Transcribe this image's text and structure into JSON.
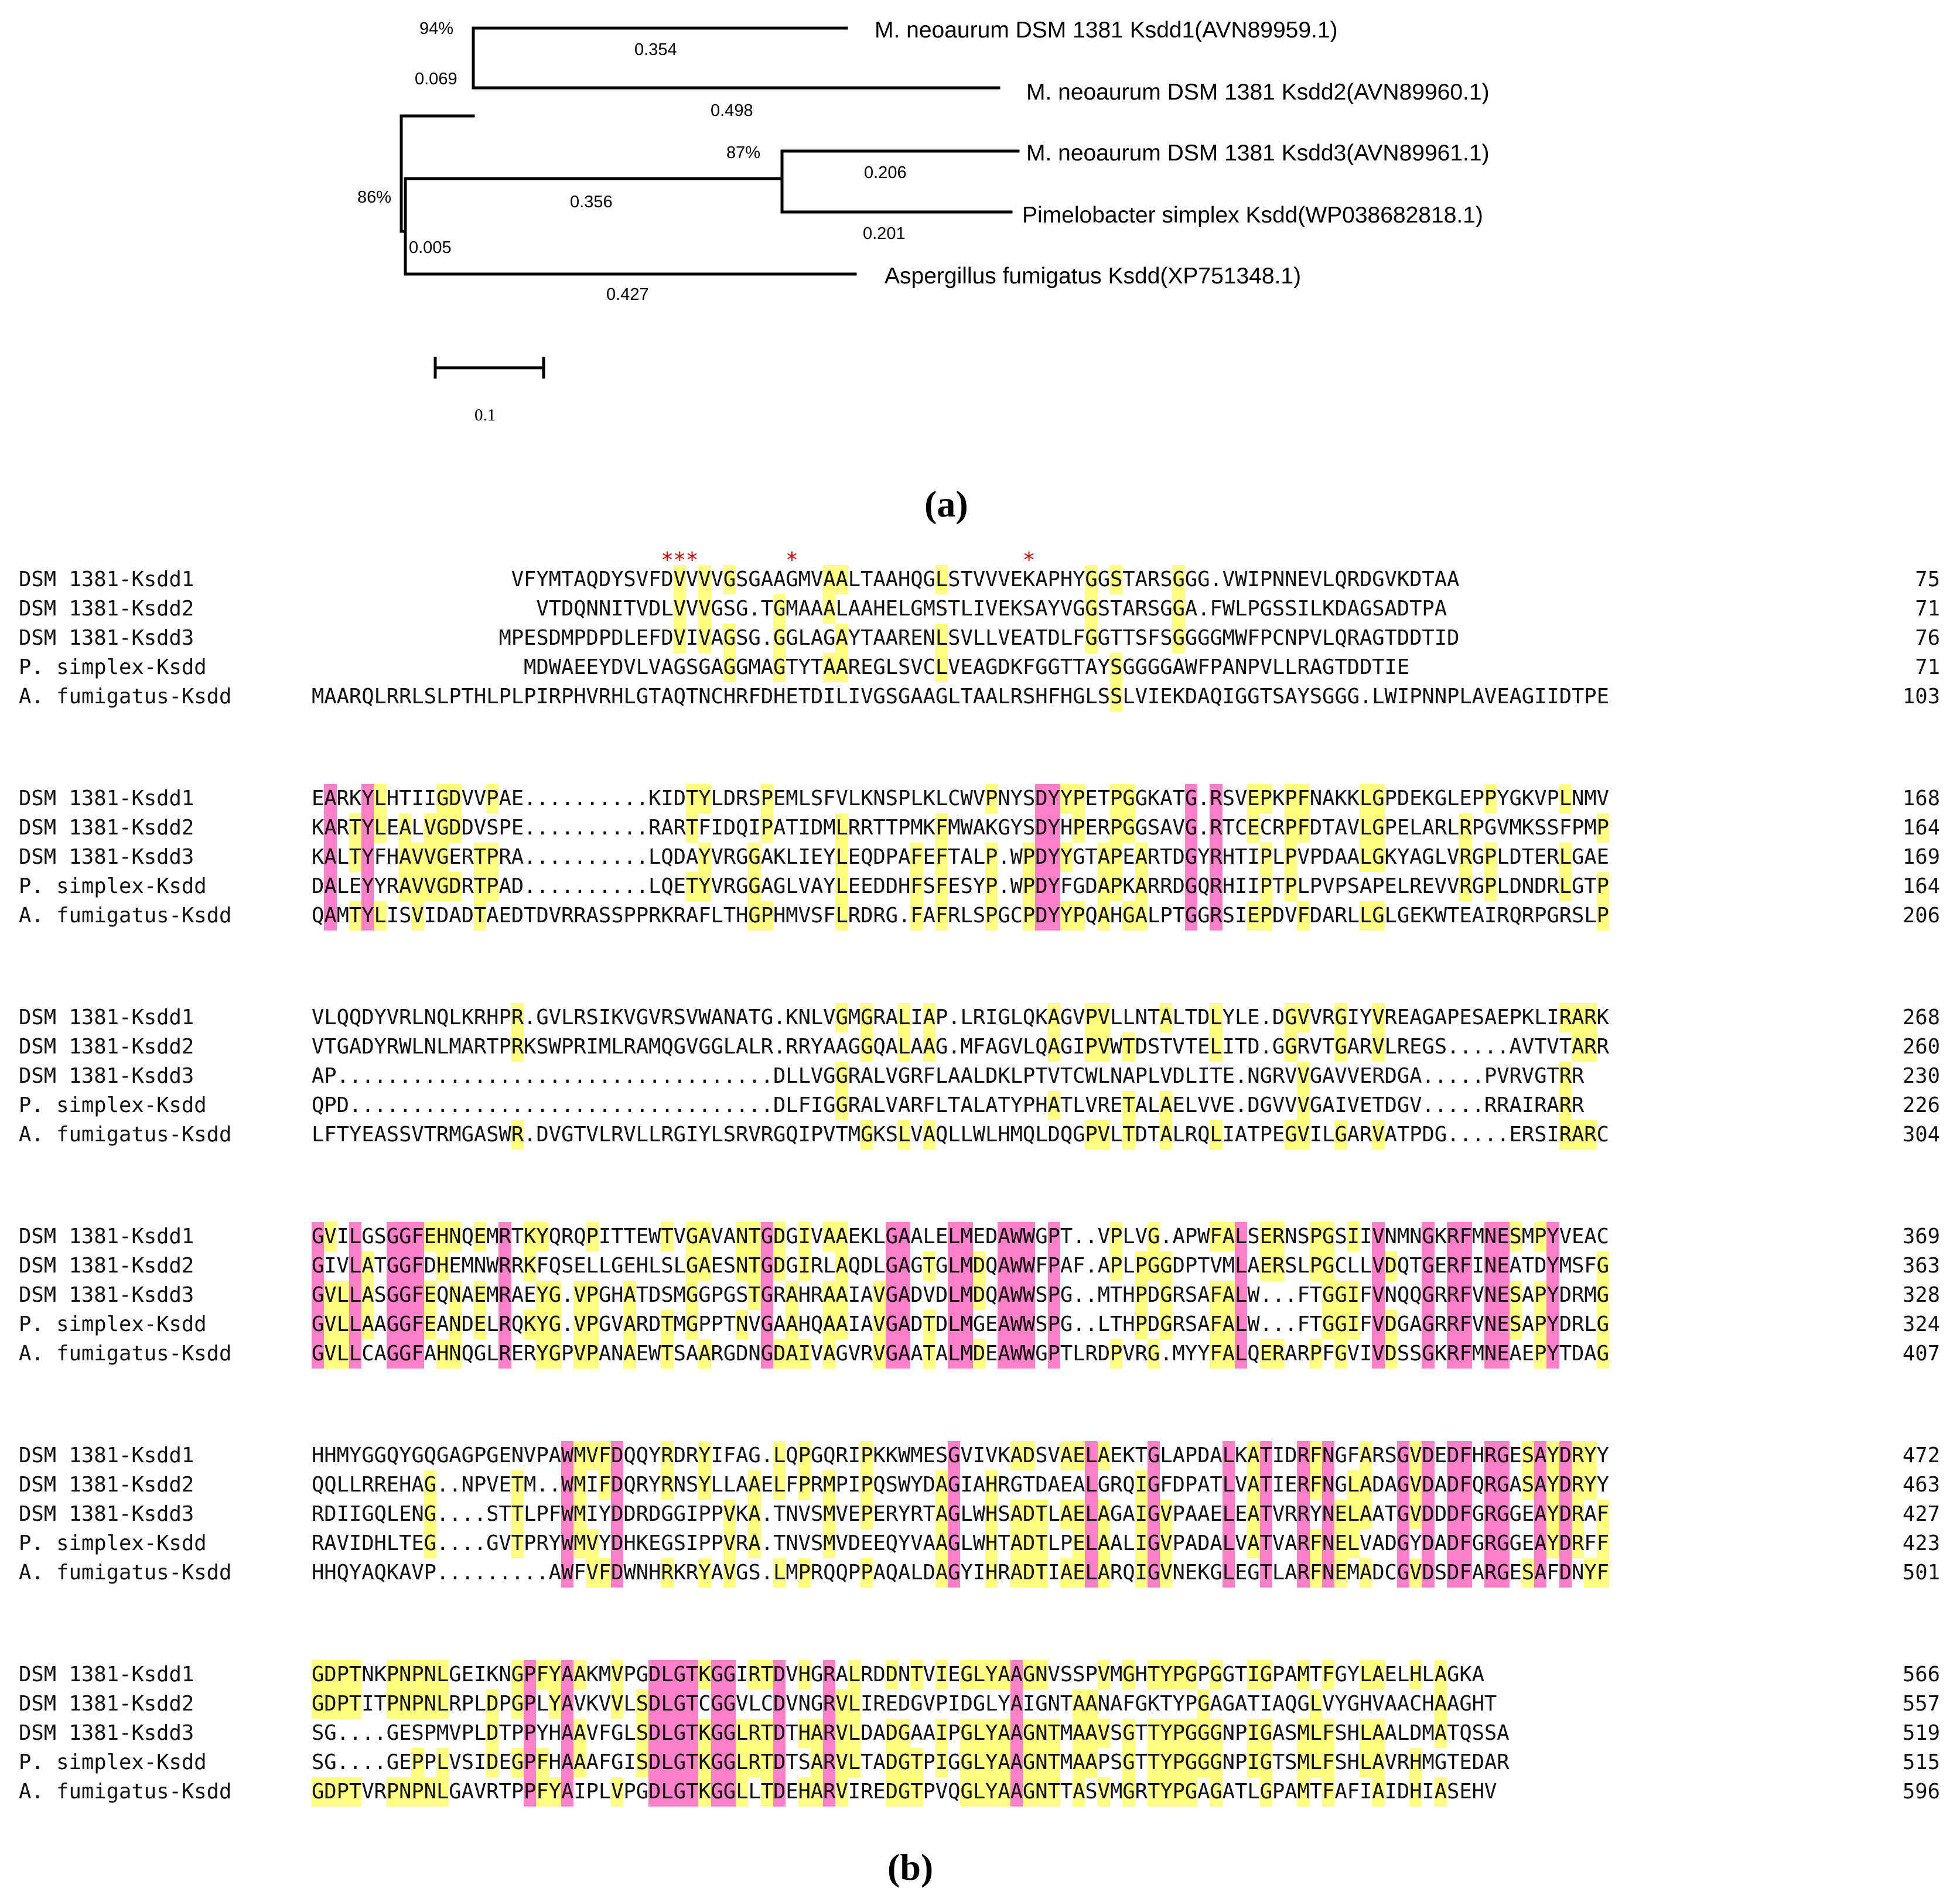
{
  "figure": {
    "panel_a_label": "(a)",
    "panel_b_label": "(b)"
  },
  "tree": {
    "taxa": [
      "M. neoaurum DSM 1381 Ksdd1(AVN89959.1)",
      "M. neoaurum DSM 1381 Ksdd2(AVN89960.1)",
      "M. neoaurum DSM 1381 Ksdd3(AVN89961.1)",
      "Pimelobacter simplex Ksdd(WP038682818.1)",
      "Aspergillus fumigatus Ksdd(XP751348.1)"
    ],
    "branch_lengths": {
      "ksdd1": "0.354",
      "ksdd2": "0.498",
      "ksdd3": "0.206",
      "pimelobacter": "0.201",
      "aspergillus": "0.427",
      "clade_ksdd1_ksdd2": "0.069",
      "clade_ksdd3_pimelobacter": "0.356",
      "clade_lower": "0.005"
    },
    "bootstrap": {
      "ksdd1_ksdd2": "94%",
      "ksdd3_pimelobacter": "87%",
      "lower_clade": "86%"
    },
    "scale_bar": {
      "label": "0.1",
      "value": 0.1
    }
  },
  "alignment": {
    "star_marks": [
      12,
      13,
      14,
      22,
      41
    ],
    "highlight_colors": {
      "pink": "#ff80c8",
      "yellow": "#ffff80",
      "star": "#e00000"
    },
    "blocks": [
      {
        "rows": [
          {
            "name": "DSM 1381-Ksdd1",
            "seq": "                VFYMTAQDYSVFDVVVVGSGAAGMVAALTAAHQGLSTVVVEKAPHYGGSTARSGGG.VWIPNNEVLQRDGVKDTAA",
            "end": "75"
          },
          {
            "name": "DSM 1381-Ksdd2",
            "seq": "                  VTDQNNITVDLVVVGSG.TGMAAALAAHELGMSTLIVEKSAYVGGSTARSGGA.FWLPGSSILKDAGSADTPA",
            "end": "71"
          },
          {
            "name": "DSM 1381-Ksdd3",
            "seq": "               MPESDMPDPDLEFDVIVAGSG.GGLAGAYTAARENLSVLLVEATDLFGGTTSFSGGGGMWFPCNPVLQRAGTDDTID",
            "end": "76"
          },
          {
            "name": "P. simplex-Ksdd",
            "seq": "                 MDWAEEYDVLVAGSGAGGMAGTYTAAREGLSVCLVEAGDKFGGTTAYSGGGGAWFPANPVLLRAGTDDTIE",
            "end": "71"
          },
          {
            "name": "A. fumigatus-Ksdd",
            "seq": "MAARQLRRLSLPTHLPLPIRPHVRHLGTAQTNCHRFDHETDILIVGSGAAGLTAALRSHFHGLSSLVIEKDAQIGGTSAYSGGG.LWIPNNPLAVEAGIIDTPE",
            "end": "103"
          }
        ]
      },
      {
        "rows": [
          {
            "name": "DSM 1381-Ksdd1",
            "seq": "EARKYLHTIIGDVVPAE..........KIDTYLDRSPEMLSFVLKNSPLKLCWVPNYSDYYPETPGGKATG.RSVEPKPFNAKKLGPDEKGLEPPYGKVPLNMV",
            "end": "168"
          },
          {
            "name": "DSM 1381-Ksdd2",
            "seq": "KARTYLEALVGDDVSPE..........RARTFIDQIPATIDMLRRTTPMKFMWAKGYSDYHPERPGGSAVG.RTCECRPFDTAVLGPELARLRPGVMKSSFPMP",
            "end": "164"
          },
          {
            "name": "DSM 1381-Ksdd3",
            "seq": "KALTYFHAVVGERTPRA..........LQDAYVRGGAKLIEYLEQDPAFEFTALP.WPDYYGTAPEARTDGYRHTIPLPVPDAALGKYAGLVRGPLDTERLGAE",
            "end": "169"
          },
          {
            "name": "P. simplex-Ksdd",
            "seq": "DALEYYRAVVGDRTPAD..........LQETYVRGGAGLVAYLEEDDHFSFESYP.WPDYFGDAPKARRDGQRHIIPTPLPVPSAPELREVVRGPLDNDRLGTP",
            "end": "164"
          },
          {
            "name": "A. fumigatus-Ksdd",
            "seq": "QAMTYLISVIDADTAEDTDVRRASSPPRKRAFLTHGPHMVSFLRDRG.FAFRLSPGCPDYYPQAHGALPTGGRSIEPDVFDARLLGLGEKWTEAIRQRPGRSLP",
            "end": "206"
          }
        ]
      },
      {
        "rows": [
          {
            "name": "DSM 1381-Ksdd1",
            "seq": "VLQQDYVRLNQLKRHPR.GVLRSIKVGVRSVWANATG.KNLVGMGRALIAP.LRIGLQKAGVPVLLNTALTDLYLE.DGVVRGIYVREAGAPESAEPKLIRARK",
            "end": "268"
          },
          {
            "name": "DSM 1381-Ksdd2",
            "seq": "VTGADYRWLNLMARTPRKSWPRIMLRAMQGVGGLALR.RRYAAGGQALAAG.MFAGVLQAGIPVWTDSTVTELITD.GGRVTGARVLREGS.....AVTVTARR",
            "end": "260"
          },
          {
            "name": "DSM 1381-Ksdd3",
            "seq": "AP...................................DLLVGGRALVGRFLAALDKLPTVTCWLNAPLVDLITE.NGRVVGAVVERDGA.....PVRVGTRR",
            "end": "230"
          },
          {
            "name": "P. simplex-Ksdd",
            "seq": "QPD..................................DLFIGGRALVARFLTALATYPHATLVRETALAELVVE.DGVVVGAIVETDGV.....RRAIRARR",
            "end": "226"
          },
          {
            "name": "A. fumigatus-Ksdd",
            "seq": "LFTYEASSVTRMGASWR.DVGTVLRVLLRGIYLSRVRGQIPVTMGKSLVAQLLWLHMQLDQGPVLTDTALRQLIATPEGVILGARVATPDG.....ERSIRARC",
            "end": "304"
          }
        ]
      },
      {
        "rows": [
          {
            "name": "DSM 1381-Ksdd1",
            "seq": "GVILGSGGFEHNQEMRTKYQRQPITTEWTVGAVANTGDGIVAAEKLGAALELMEDAWWGPT..VPLVG.APWFALSERNSPGSIIVNMNGKRFMNESMPYVEAC",
            "end": "369"
          },
          {
            "name": "DSM 1381-Ksdd2",
            "seq": "GIVLATGGFDHEMNWRRKFQSELLGEHLSLGAESNTGDGIRLAQDLGAGTGLMDQAWWFPAF.APLPGGDPTVMLAERSLPGCLLVDQTGERFINEATDYMSFG",
            "end": "363"
          },
          {
            "name": "DSM 1381-Ksdd3",
            "seq": "GVLLASGGFEQNAEMRAEYG.VPGHATDSMGGPGSTGRAHRAAIAVGADVDLMDQAWWSPG..MTHPDGRSAFALW...FTGGIFVNQQGRRFVNESAPYDRMG",
            "end": "328"
          },
          {
            "name": "P. simplex-Ksdd",
            "seq": "GVLLAAGGFEANDELRQKYG.VPGVARDTMGPPTNVGAAHQAAIAVGADTDLMGEAWWSPG..LTHPDGRSAFALW...FTGGIFVDGAGRRFVNESAPYDRLG",
            "end": "324"
          },
          {
            "name": "A. fumigatus-Ksdd",
            "seq": "GVLLCAGGFAHNQGLRERYGPVPANAEWTSAARGDNGDAIVAGVRVGAATALMDEAWWGPTLRDPVRG.MYYFALQERARPFGVIVDSSGKRFMNEAEPYTDAG",
            "end": "407"
          }
        ]
      },
      {
        "rows": [
          {
            "name": "DSM 1381-Ksdd1",
            "seq": "HHMYGGQYGQGAGPGENVPAWMVFDQQYRDRYIFAG.LQPGQRIPKKWMESGVIVKADSVAELAEKTGLAPDALKATIDRFNGFARSGVDEDFHRGESAYDRYY",
            "end": "472"
          },
          {
            "name": "DSM 1381-Ksdd2",
            "seq": "QQLLRREHAG..NPVETM..WMIFDQRYRNSYLLAAELFPRMPIPQSWYDAGIAHRGTDAEALGRQIGFDPATLVATIERFNGLADAGVDADFQRGASAYDRYY",
            "end": "463"
          },
          {
            "name": "DSM 1381-Ksdd3",
            "seq": "RDIIGQLENG....STTLPFWMIYDDRDGGIPPVKA.TNVSMVEPERYRTAGLWHSADTLAELAGAIGVPAAELEATVRRYNELAATGVDDDFGRGGEAYDRAF",
            "end": "427"
          },
          {
            "name": "P. simplex-Ksdd",
            "seq": "RAVIDHLTEG....GVTPRYWMVYDHKEGSIPPVRA.TNVSMVDEEQYVAAGLWHTADTLPELAALIGVPADALVATVARFNELVADGYDADFGRGGEAYDRFF",
            "end": "423"
          },
          {
            "name": "A. fumigatus-Ksdd",
            "seq": "HHQYAQKAVP.........AWFVFDWNHRKRYAVGS.LMPRQQPPAQALDAGYIHRADTIAELARQIGVNEKGLEGTLARFNEMADCGVDSDFARGESAFDNYF",
            "end": "501"
          }
        ]
      },
      {
        "rows": [
          {
            "name": "DSM 1381-Ksdd1",
            "seq": "GDPTNKPNPNLGEIKNGPFYAAKMVPGDLGTKGGIRTDVHGRALRDDNTVIEGLYAAGNVSSPVMGHTYPGPGGTIGPAMTFGYLAELHLAGKA",
            "end": "566"
          },
          {
            "name": "DSM 1381-Ksdd2",
            "seq": "GDPTITPNPNLRPLDPGPLYAVKVVLSDLGTCGGVLCDVNGRVLIREDGVPIDGLYAIGNTAANAFGKTYPGAGATIAQGLVYGHVAACHAAGHT",
            "end": "557"
          },
          {
            "name": "DSM 1381-Ksdd3",
            "seq": "SG....GESPMVPLDTPPYHAAVFGLSDLGTKGGLRTDTHARVLDADGAAIPGLYAAGNTMAAVSGTTYPGGGNPIGASMLFSHLAALDMATQSSA",
            "end": "519"
          },
          {
            "name": "P. simplex-Ksdd",
            "seq": "SG....GEPPLVSIDEGPFHAAAFGISDLGTKGGLRTDTSARVLTADGTPIGGLYAAGNTMAAPSGTTYPGGGNPIGTSMLFSHLAVRHMGTEDAR",
            "end": "515"
          },
          {
            "name": "A. fumigatus-Ksdd",
            "seq": "GDPTVRPNPNLGAVRTPPFYAIPLVPGDLGTKGGLLTDEHARVIREDGTPVQGLYAAGNTTASVMGRTYPGAGATLGPAMTFAFIAIDHIASEHV",
            "end": "596"
          }
        ]
      }
    ]
  }
}
